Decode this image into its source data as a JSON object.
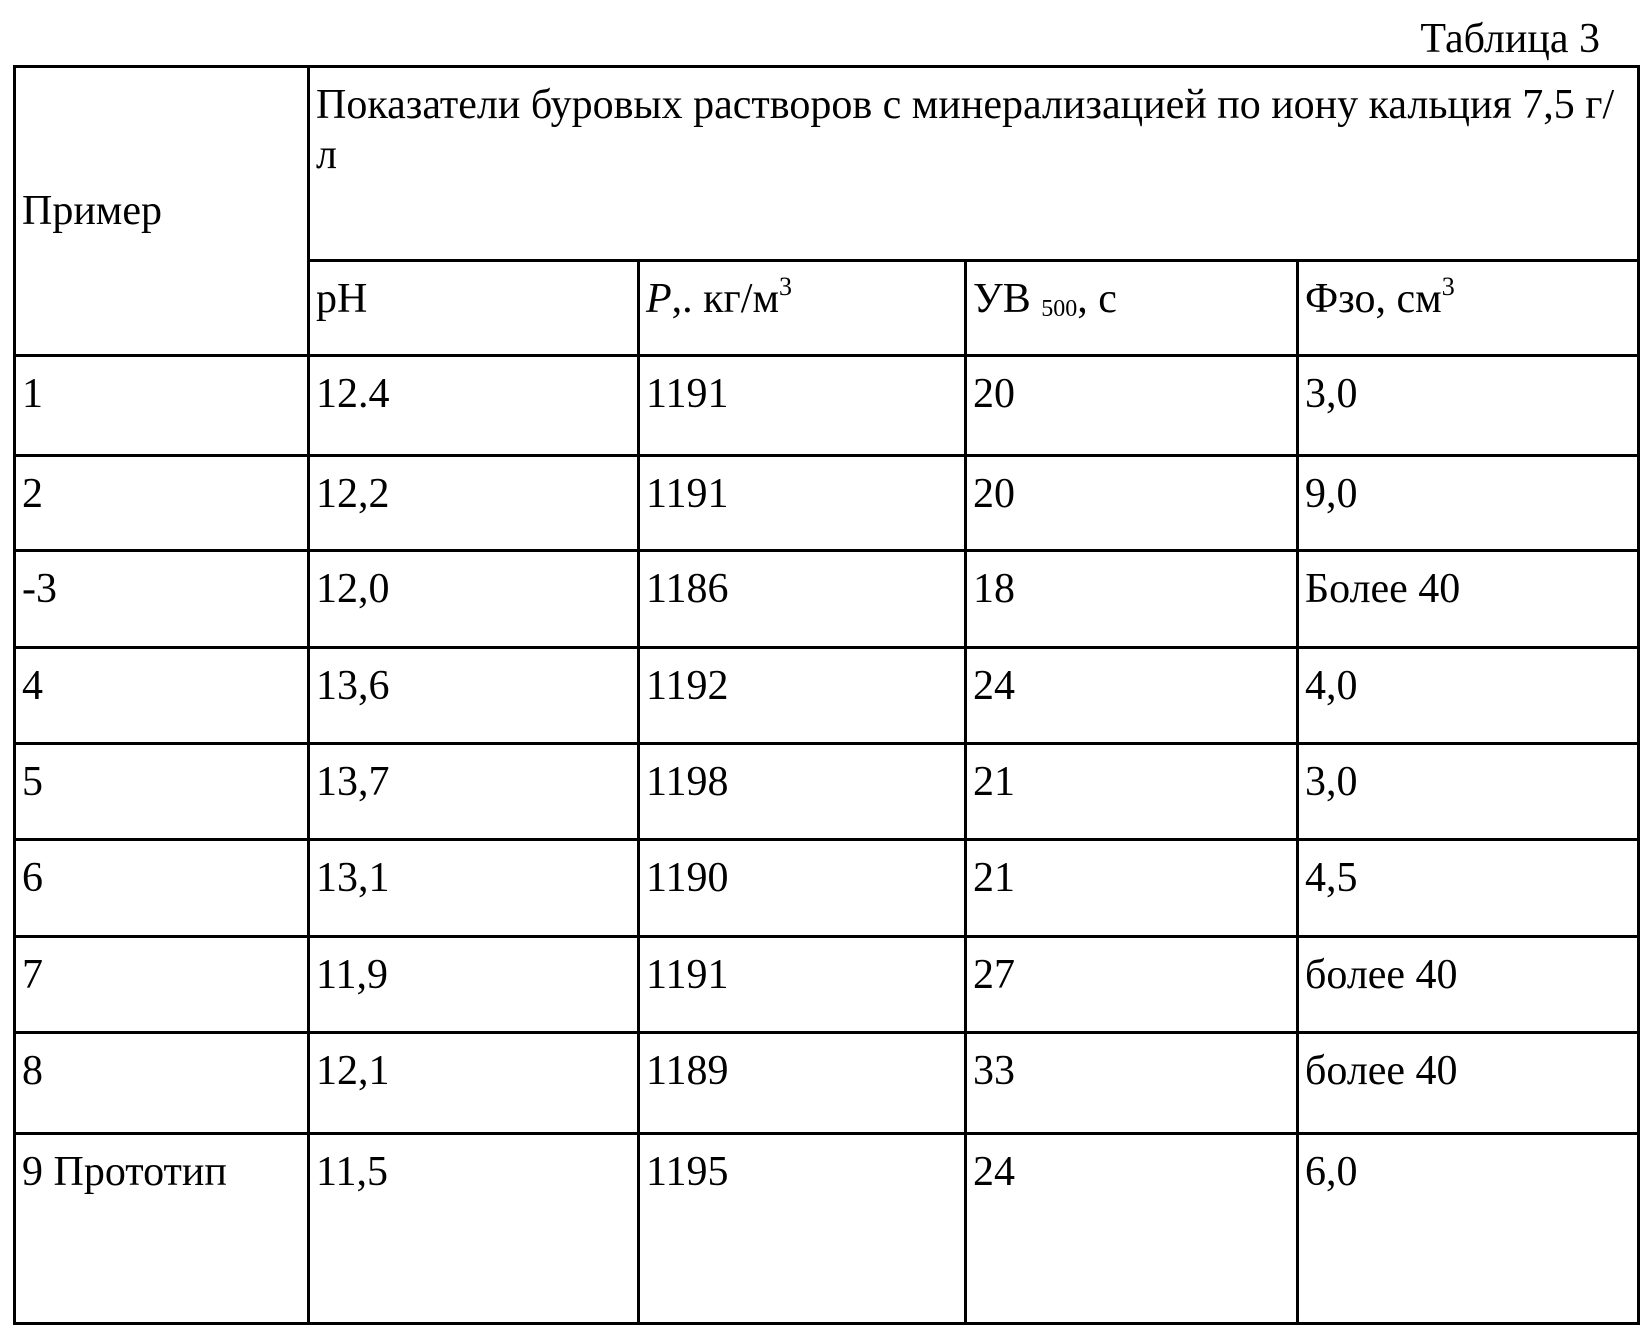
{
  "title": "Таблица 3",
  "table": {
    "header": {
      "example": "Пример",
      "group": "Показатели буровых растворов с минерализацией по иону кальция 7,5 г/л",
      "columns": [
        {
          "text": "pH"
        },
        {
          "italic": "P",
          "text": ",. кг/м",
          "sup": "3"
        },
        {
          "text": "УВ ",
          "sub": "500",
          "after": ", с"
        },
        {
          "text": "Фзо, см",
          "sup": "3"
        }
      ]
    },
    "rows": [
      [
        "1",
        "12.4",
        "1191",
        "20",
        "3,0"
      ],
      [
        "2",
        "12,2",
        "1191",
        "20",
        "9,0"
      ],
      [
        "-3",
        "12,0",
        "1186",
        "18",
        "Более 40"
      ],
      [
        "4",
        "13,6",
        "1192",
        "24",
        "4,0"
      ],
      [
        "5",
        "13,7",
        "1198",
        "21",
        "3,0"
      ],
      [
        "6",
        "13,1",
        "1190",
        "21",
        "4,5"
      ],
      [
        "7",
        "11,9",
        "1191",
        "27",
        "более 40"
      ],
      [
        "8",
        "12,1",
        "1189",
        "33",
        "более 40"
      ],
      [
        "9 Прототип",
        "11,5",
        "1195",
        "24",
        "6,0"
      ]
    ]
  }
}
